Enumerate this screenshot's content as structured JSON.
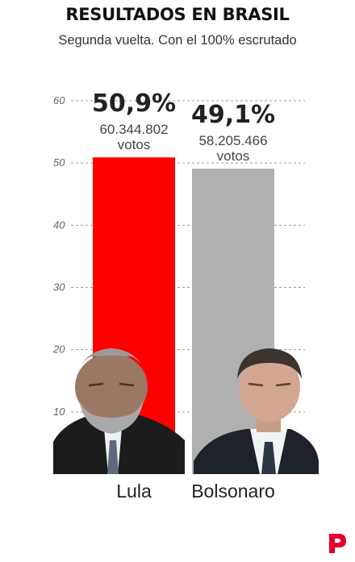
{
  "title": "RESULTADOS EN BRASIL",
  "subtitle": "Segunda vuelta. Con el 100% escrutado",
  "chart_data": {
    "type": "bar",
    "title": "RESULTADOS EN BRASIL",
    "subtitle": "Segunda vuelta. Con el 100% escrutado",
    "categories": [
      "Lula",
      "Bolsonaro"
    ],
    "values": [
      50.9,
      49.1
    ],
    "percent_labels": [
      "50,9%",
      "49,1%"
    ],
    "vote_counts": [
      "60.344.802",
      "58.205.466"
    ],
    "votes_word": "votos",
    "colors": [
      "#ff0000",
      "#b0b0b0"
    ],
    "ylim": [
      0,
      60
    ],
    "yticks": [
      "10",
      "20",
      "30",
      "40",
      "50",
      "60"
    ],
    "grid": "dashed horizontal",
    "photos": [
      "lula-portrait",
      "bolsonaro-portrait"
    ]
  }
}
